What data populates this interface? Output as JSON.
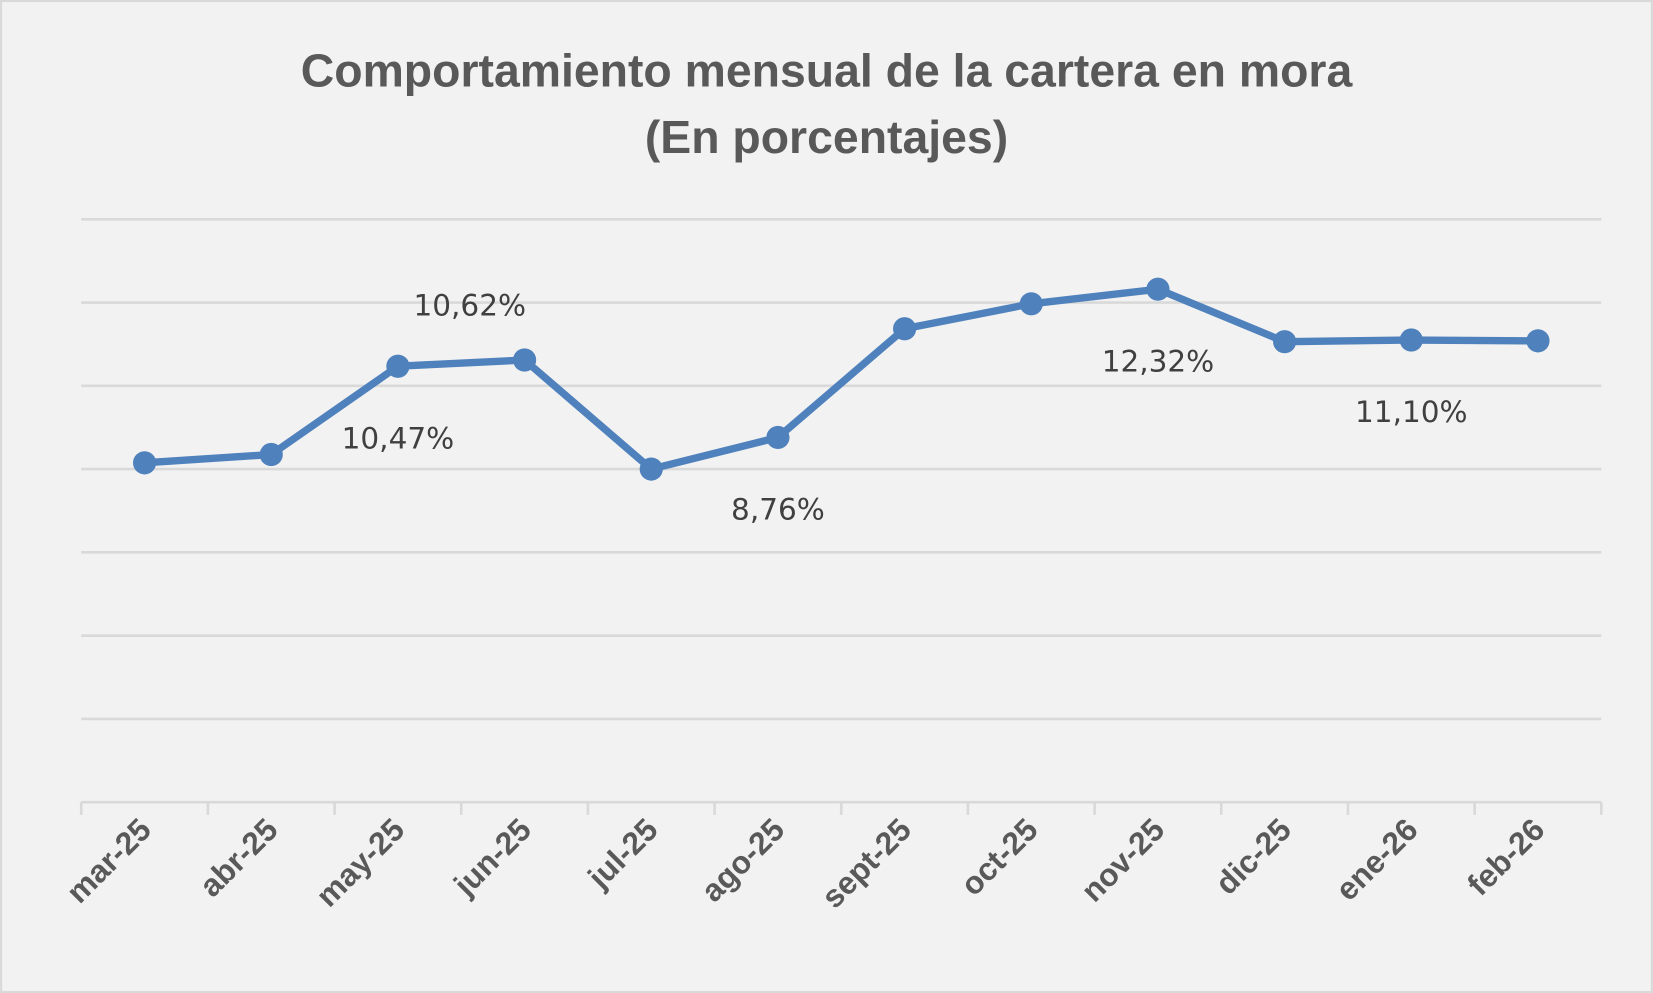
{
  "chart_data": {
    "type": "line",
    "title": "Comportamiento mensual de la cartera en mora",
    "subtitle": "(En porcentajes)",
    "xlabel": "",
    "ylabel": "",
    "categories": [
      "mar-25",
      "abr-25",
      "may-25",
      "jun-25",
      "jul-25",
      "ago-25",
      "sept-25",
      "oct-25",
      "nov-25",
      "dic-25",
      "ene-26",
      "feb-26"
    ],
    "series": [
      {
        "name": "Cartera en mora",
        "color": "#4f81bd",
        "values": [
          8.15,
          8.35,
          10.47,
          10.62,
          8.0,
          8.76,
          11.37,
          11.97,
          12.32,
          11.06,
          11.1,
          11.08
        ]
      }
    ],
    "data_labels": [
      {
        "index": 2,
        "text": "10,47%",
        "placement": "below"
      },
      {
        "index": 3,
        "text": "10,62%",
        "placement": "above"
      },
      {
        "index": 5,
        "text": "8,76%",
        "placement": "below"
      },
      {
        "index": 8,
        "text": "12,32%",
        "placement": "below"
      },
      {
        "index": 10,
        "text": "11,10%",
        "placement": "below"
      }
    ],
    "ylim": [
      0,
      14
    ],
    "ytick_step": 2,
    "y_axis_labels_shown": false,
    "grid": true,
    "legend": "none"
  }
}
